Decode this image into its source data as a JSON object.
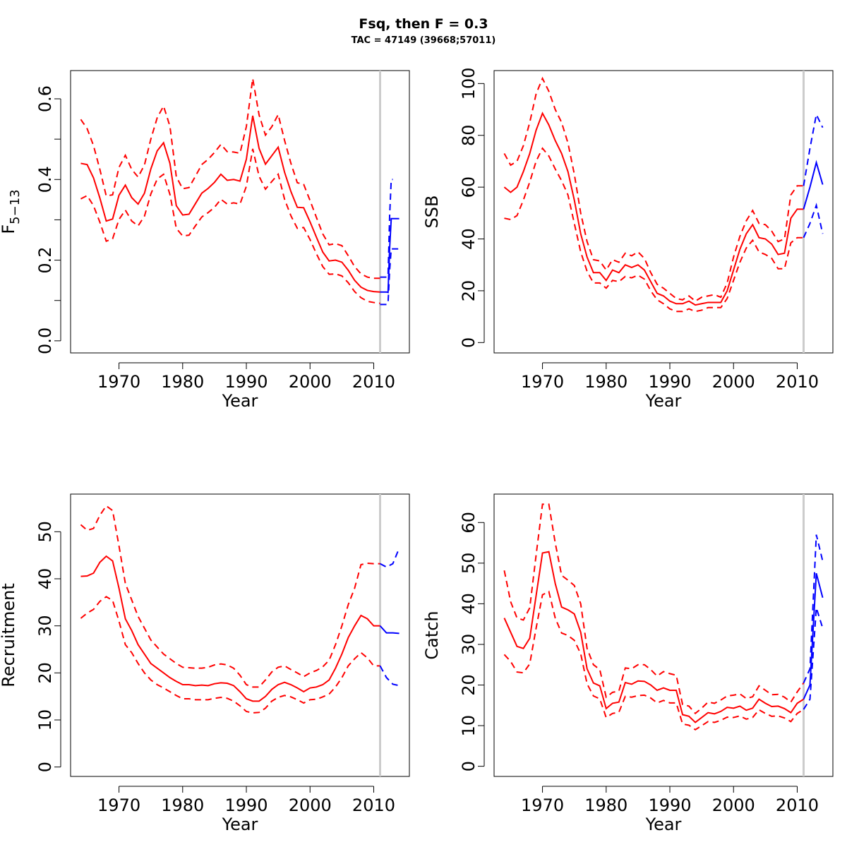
{
  "figure": {
    "title": "Fsq, then F = 0.3",
    "subtitle": "TAC = 47149 (39668;57011)"
  },
  "colors": {
    "history": "#ff0000",
    "projection": "#0000ff",
    "divider": "#cccccc",
    "axis": "#000000"
  },
  "divider_year": 2011,
  "chart_data": [
    {
      "type": "line",
      "panel": "fbar",
      "ylabel": "F̅",
      "ylabel_sub": "5−13",
      "xlabel": "Year",
      "xlim": [
        1962.4,
        2015.6
      ],
      "ylim": [
        -0.03,
        0.67
      ],
      "x_ticks": [
        1970,
        1980,
        1990,
        2000,
        2010
      ],
      "x_tick_labels": [
        "1970",
        "1980",
        "1990",
        "2000",
        "2010"
      ],
      "y_ticks": [
        0.0,
        0.1,
        0.2,
        0.3,
        0.4,
        0.5,
        0.6
      ],
      "y_tick_labels": [
        "0.0",
        "",
        "0.2",
        "",
        "0.4",
        "",
        "0.6"
      ],
      "history": {
        "x": [
          1964,
          1965,
          1966,
          1967,
          1968,
          1969,
          1970,
          1971,
          1972,
          1973,
          1974,
          1975,
          1976,
          1977,
          1978,
          1979,
          1980,
          1981,
          1982,
          1983,
          1984,
          1985,
          1986,
          1987,
          1988,
          1989,
          1990,
          1991,
          1992,
          1993,
          1994,
          1995,
          1996,
          1997,
          1998,
          1999,
          2000,
          2001,
          2002,
          2003,
          2004,
          2005,
          2006,
          2007,
          2008,
          2009,
          2010,
          2011
        ],
        "mean": [
          0.44,
          0.437,
          0.404,
          0.354,
          0.297,
          0.302,
          0.361,
          0.386,
          0.355,
          0.339,
          0.366,
          0.426,
          0.471,
          0.491,
          0.44,
          0.335,
          0.312,
          0.314,
          0.34,
          0.366,
          0.378,
          0.393,
          0.413,
          0.398,
          0.4,
          0.396,
          0.45,
          0.558,
          0.477,
          0.438,
          0.459,
          0.48,
          0.418,
          0.37,
          0.331,
          0.33,
          0.295,
          0.257,
          0.22,
          0.198,
          0.2,
          0.195,
          0.175,
          0.15,
          0.133,
          0.125,
          0.122,
          0.121
        ],
        "upper": [
          0.549,
          0.526,
          0.484,
          0.425,
          0.359,
          0.362,
          0.43,
          0.46,
          0.425,
          0.406,
          0.436,
          0.5,
          0.553,
          0.582,
          0.532,
          0.407,
          0.377,
          0.38,
          0.408,
          0.437,
          0.45,
          0.467,
          0.487,
          0.469,
          0.468,
          0.465,
          0.531,
          0.65,
          0.56,
          0.51,
          0.531,
          0.561,
          0.497,
          0.44,
          0.392,
          0.388,
          0.348,
          0.306,
          0.265,
          0.238,
          0.241,
          0.236,
          0.211,
          0.184,
          0.166,
          0.158,
          0.155,
          0.155
        ],
        "lower": [
          0.352,
          0.36,
          0.335,
          0.294,
          0.247,
          0.253,
          0.301,
          0.324,
          0.297,
          0.285,
          0.309,
          0.364,
          0.401,
          0.413,
          0.363,
          0.279,
          0.26,
          0.262,
          0.285,
          0.307,
          0.318,
          0.331,
          0.351,
          0.339,
          0.342,
          0.339,
          0.383,
          0.476,
          0.408,
          0.376,
          0.395,
          0.413,
          0.351,
          0.31,
          0.279,
          0.281,
          0.251,
          0.216,
          0.184,
          0.165,
          0.166,
          0.161,
          0.144,
          0.122,
          0.107,
          0.098,
          0.095,
          0.093
        ]
      },
      "projection": {
        "x": [
          2011,
          2012,
          2012.25,
          2012.5,
          2012.75,
          2013,
          2014
        ],
        "mean": [
          0.121,
          0.121,
          0.12,
          0.23,
          0.303,
          0.303,
          0.303
        ],
        "upper": [
          0.158,
          0.158,
          0.16,
          0.31,
          0.4,
          0.4,
          null
        ],
        "lower": [
          0.09,
          0.09,
          0.093,
          0.175,
          0.228,
          0.228,
          0.228
        ]
      }
    },
    {
      "type": "line",
      "panel": "ssb",
      "ylabel": "SSB",
      "xlabel": "Year",
      "xlim": [
        1962.4,
        2015.6
      ],
      "ylim": [
        -4,
        105
      ],
      "x_ticks": [
        1970,
        1980,
        1990,
        2000,
        2010
      ],
      "x_tick_labels": [
        "1970",
        "1980",
        "1990",
        "2000",
        "2010"
      ],
      "y_ticks": [
        0,
        20,
        40,
        60,
        80,
        100
      ],
      "y_tick_labels": [
        "0",
        "20",
        "40",
        "60",
        "80",
        "100"
      ],
      "history": {
        "x": [
          1964,
          1965,
          1966,
          1967,
          1968,
          1969,
          1970,
          1971,
          1972,
          1973,
          1974,
          1975,
          1976,
          1977,
          1978,
          1979,
          1980,
          1981,
          1982,
          1983,
          1984,
          1985,
          1986,
          1987,
          1988,
          1989,
          1990,
          1991,
          1992,
          1993,
          1994,
          1995,
          1996,
          1997,
          1998,
          1999,
          2000,
          2001,
          2002,
          2003,
          2004,
          2005,
          2006,
          2007,
          2008,
          2009,
          2010,
          2011
        ],
        "mean": [
          60,
          58,
          60,
          66,
          73,
          82,
          88.5,
          84,
          78,
          73,
          66,
          55,
          42,
          33,
          27,
          27,
          24,
          28,
          27,
          30,
          29,
          30,
          28,
          23.5,
          19,
          18,
          16,
          15,
          15,
          16,
          14.5,
          15,
          15.5,
          15.5,
          15.5,
          20,
          28,
          36,
          42,
          45.5,
          40.5,
          40,
          38,
          34,
          34.5,
          48,
          51.5,
          51.5
        ],
        "upper": [
          73,
          68.5,
          70,
          76,
          85,
          96,
          102,
          97,
          90,
          85,
          77,
          65,
          50,
          39,
          32,
          31.5,
          28,
          32,
          31,
          34.5,
          33.5,
          35,
          32.5,
          27,
          22.5,
          21,
          19,
          17,
          16.5,
          18,
          16,
          17.5,
          18,
          18.5,
          17.5,
          23,
          33,
          41,
          47,
          51,
          46,
          45.5,
          43,
          39,
          40,
          57,
          60.5,
          60.5
        ],
        "lower": [
          48,
          47.5,
          49,
          55,
          62,
          70,
          75,
          72,
          67,
          62.5,
          57,
          46,
          35,
          27.5,
          23,
          23,
          21,
          24,
          23.5,
          25.5,
          25,
          26,
          24.5,
          20,
          16.5,
          15,
          13,
          12,
          12,
          13,
          12,
          12.5,
          13.5,
          13.5,
          13.5,
          17,
          24,
          31,
          36.5,
          39.5,
          35,
          34,
          32.5,
          28.5,
          28.5,
          38.5,
          40.5,
          40.5
        ]
      },
      "projection": {
        "x": [
          2011,
          2012,
          2013,
          2014
        ],
        "mean": [
          51.5,
          60,
          69.5,
          61
        ],
        "upper": [
          60.5,
          75,
          88,
          83
        ],
        "lower": [
          40.5,
          46,
          53,
          42
        ]
      }
    },
    {
      "type": "line",
      "panel": "recruitment",
      "ylabel": "Recruitment",
      "xlabel": "Year",
      "xlim": [
        1962.4,
        2015.6
      ],
      "ylim": [
        -2,
        58
      ],
      "x_ticks": [
        1970,
        1980,
        1990,
        2000,
        2010
      ],
      "x_tick_labels": [
        "1970",
        "1980",
        "1990",
        "2000",
        "2010"
      ],
      "y_ticks": [
        0,
        10,
        20,
        30,
        40,
        50
      ],
      "y_tick_labels": [
        "0",
        "10",
        "20",
        "30",
        "40",
        "50"
      ],
      "history": {
        "x": [
          1964,
          1965,
          1966,
          1967,
          1968,
          1969,
          1970,
          1971,
          1972,
          1973,
          1974,
          1975,
          1976,
          1977,
          1978,
          1979,
          1980,
          1981,
          1982,
          1983,
          1984,
          1985,
          1986,
          1987,
          1988,
          1989,
          1990,
          1991,
          1992,
          1993,
          1994,
          1995,
          1996,
          1997,
          1998,
          1999,
          2000,
          2001,
          2002,
          2003,
          2004,
          2005,
          2006,
          2007,
          2008,
          2009,
          2010,
          2011
        ],
        "mean": [
          40.5,
          40.6,
          41.2,
          43.5,
          44.8,
          43.8,
          38,
          31.5,
          29,
          26,
          24,
          22,
          21,
          20,
          19,
          18.2,
          17.5,
          17.5,
          17.3,
          17.4,
          17.3,
          17.7,
          17.9,
          17.8,
          17.3,
          16,
          14.5,
          14,
          14,
          15,
          16.5,
          17.5,
          18,
          17.5,
          16.8,
          16,
          16.8,
          17,
          17.5,
          18.5,
          21,
          24,
          27.5,
          30,
          32.2,
          31.5,
          30,
          30
        ],
        "upper": [
          51.5,
          50.3,
          50.7,
          53.5,
          55.5,
          54.5,
          47,
          39,
          35.5,
          32,
          29.5,
          27,
          25.5,
          24,
          23,
          22,
          21.2,
          21.1,
          21,
          21,
          21.2,
          21.7,
          21.9,
          21.7,
          21,
          19.5,
          17.5,
          17,
          17,
          18.5,
          20.2,
          21.2,
          21.5,
          20.7,
          20,
          19.2,
          20,
          20.5,
          21.3,
          22.7,
          26,
          30,
          34.5,
          38,
          43,
          43.3,
          43.2,
          43.2
        ],
        "lower": [
          31.6,
          32.7,
          33.5,
          35.2,
          36.2,
          35.4,
          31,
          26,
          24.3,
          22,
          20,
          18.5,
          17.5,
          16.8,
          16,
          15.2,
          14.5,
          14.5,
          14.3,
          14.3,
          14.3,
          14.6,
          14.8,
          14.6,
          14,
          13,
          11.8,
          11.5,
          11.6,
          12.5,
          14,
          14.8,
          15.2,
          14.9,
          14.3,
          13.6,
          14.3,
          14.4,
          14.9,
          15.5,
          17,
          19,
          21.5,
          23,
          24.3,
          23.2,
          21.5,
          21.5
        ]
      },
      "projection": {
        "x": [
          2011,
          2012,
          2013,
          2014
        ],
        "mean": [
          30,
          28.5,
          28.5,
          28.4
        ],
        "upper": [
          43.2,
          42.5,
          43.2,
          46.5
        ],
        "lower": [
          21.5,
          19,
          17.6,
          17.3
        ]
      }
    },
    {
      "type": "line",
      "panel": "catch",
      "ylabel": "Catch",
      "xlabel": "Year",
      "xlim": [
        1962.4,
        2015.6
      ],
      "ylim": [
        -2.5,
        67
      ],
      "x_ticks": [
        1970,
        1980,
        1990,
        2000,
        2010
      ],
      "x_tick_labels": [
        "1970",
        "1980",
        "1990",
        "2000",
        "2010"
      ],
      "y_ticks": [
        0,
        10,
        20,
        30,
        40,
        50,
        60
      ],
      "y_tick_labels": [
        "0",
        "10",
        "20",
        "30",
        "40",
        "50",
        "60"
      ],
      "history": {
        "x": [
          1964,
          1965,
          1966,
          1967,
          1968,
          1969,
          1970,
          1971,
          1972,
          1973,
          1974,
          1975,
          1976,
          1977,
          1978,
          1979,
          1980,
          1981,
          1982,
          1983,
          1984,
          1985,
          1986,
          1987,
          1988,
          1989,
          1990,
          1991,
          1992,
          1993,
          1994,
          1995,
          1996,
          1997,
          1998,
          1999,
          2000,
          2001,
          2002,
          2003,
          2004,
          2005,
          2006,
          2007,
          2008,
          2009,
          2010,
          2011
        ],
        "mean": [
          36.5,
          33,
          29.5,
          29,
          31.5,
          42,
          52.5,
          52.8,
          45,
          39.2,
          38.5,
          37.5,
          33,
          24,
          20.5,
          19.8,
          14.2,
          15.5,
          15.8,
          20.6,
          20.2,
          21,
          20.9,
          20,
          18.7,
          19.3,
          18.7,
          18.7,
          12.7,
          12.3,
          10.8,
          12,
          13.2,
          12.9,
          13.5,
          14.5,
          14.3,
          14.8,
          13.8,
          14.3,
          16.5,
          15.5,
          14.7,
          14.8,
          14.2,
          13.2,
          15.5,
          16.5
        ],
        "upper": [
          48.2,
          40.5,
          36.5,
          36,
          39,
          52,
          64.5,
          64.5,
          55,
          47,
          45.8,
          44.5,
          40,
          29,
          25,
          23.8,
          17,
          18.2,
          18.5,
          24.2,
          24,
          25,
          25,
          23.8,
          22.2,
          23.3,
          22.8,
          22.4,
          15.2,
          14.8,
          13,
          14.3,
          15.8,
          15.5,
          16.3,
          17.3,
          17.5,
          17.8,
          16.7,
          17.1,
          19.8,
          18.7,
          17.6,
          17.7,
          17,
          15.8,
          18.3,
          20.5
        ],
        "lower": [
          27.5,
          25.8,
          23.2,
          23,
          25.2,
          34,
          42.2,
          43,
          36.5,
          32.8,
          32.2,
          31,
          27.7,
          20.3,
          17.3,
          16.6,
          12,
          13,
          13.3,
          17.2,
          17,
          17.4,
          17.5,
          16.8,
          15.6,
          16.2,
          15.6,
          15.6,
          10.4,
          10.1,
          9,
          10,
          11,
          10.8,
          11.3,
          12.1,
          12,
          12.4,
          11.6,
          12,
          13.9,
          13,
          12.3,
          12.4,
          11.9,
          11,
          13,
          14
        ]
      },
      "projection": {
        "x": [
          2011,
          2012,
          2013,
          2014
        ],
        "mean": [
          16.5,
          20,
          47.5,
          41.5
        ],
        "upper": [
          20.5,
          24,
          57,
          50.5
        ],
        "lower": [
          14,
          16.5,
          39,
          34
        ]
      }
    }
  ]
}
